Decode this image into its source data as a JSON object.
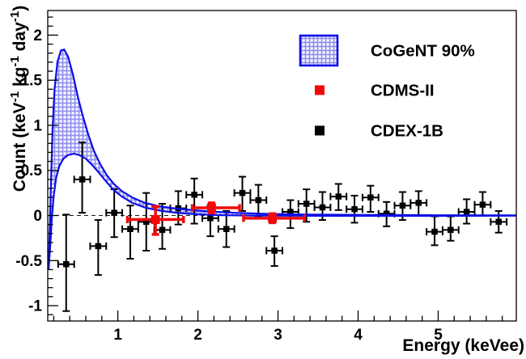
{
  "page": {
    "background": "#ffffff"
  },
  "chart_data": {
    "type": "scatter",
    "title": "",
    "xlabel": "Energy (keVee)",
    "ylabel": "Count (keV^-1 kg^-1 day^-1)",
    "xlim": [
      0.125,
      5.975
    ],
    "ylim": [
      -1.17,
      2.273
    ],
    "x_major_ticks": [
      1,
      2,
      3,
      4,
      5
    ],
    "x_tick_labels": [
      "1",
      "2",
      "3",
      "4",
      "5"
    ],
    "x_minor_step": 0.2,
    "y_major_ticks": [
      -1,
      -0.5,
      0,
      0.5,
      1,
      1.5,
      2
    ],
    "y_tick_labels": [
      "-1",
      "-0.5",
      "0",
      "0.5",
      "1",
      "1.5",
      "2"
    ],
    "y_minor_step": 0.1,
    "grid": false,
    "zero_line": {
      "value": 0,
      "style": "dashed",
      "color": "#1a1a1a"
    },
    "colors": {
      "cogent_blue": "#0d0de6",
      "hatch_blue": "#9090ef",
      "cdms_red": "#f20a0a",
      "cdex_black": "#000000",
      "axis": "#000000"
    },
    "legend": {
      "position": "top-right",
      "entries": [
        {
          "label": "CoGeNT 90%",
          "marker": "hatched-band"
        },
        {
          "label": "CDMS-II",
          "marker": "red-square"
        },
        {
          "label": "CDEX-1B",
          "marker": "black-square"
        }
      ]
    },
    "series": [
      {
        "name": "CoGeNT 90%",
        "type": "band",
        "upper": [
          [
            0.135,
            -0.6
          ],
          [
            0.15,
            -0.15
          ],
          [
            0.165,
            0.35
          ],
          [
            0.185,
            0.95
          ],
          [
            0.21,
            1.4
          ],
          [
            0.245,
            1.7
          ],
          [
            0.29,
            1.83
          ],
          [
            0.33,
            1.84
          ],
          [
            0.38,
            1.76
          ],
          [
            0.44,
            1.56
          ],
          [
            0.5,
            1.32
          ],
          [
            0.56,
            1.11
          ],
          [
            0.63,
            0.9
          ],
          [
            0.7,
            0.72
          ],
          [
            0.78,
            0.57
          ],
          [
            0.86,
            0.45
          ],
          [
            0.95,
            0.35
          ],
          [
            1.05,
            0.27
          ],
          [
            1.18,
            0.2
          ],
          [
            1.32,
            0.145
          ],
          [
            1.5,
            0.105
          ],
          [
            1.7,
            0.08
          ],
          [
            1.95,
            0.058
          ],
          [
            2.2,
            0.042
          ],
          [
            2.5,
            0.028
          ],
          [
            2.9,
            0.017
          ],
          [
            3.4,
            0.01
          ],
          [
            4.2,
            0.006
          ],
          [
            5.0,
            0.003
          ],
          [
            5.975,
            0.001
          ]
        ],
        "lower": [
          [
            0.135,
            -0.6
          ],
          [
            0.155,
            -0.35
          ],
          [
            0.175,
            -0.05
          ],
          [
            0.2,
            0.22
          ],
          [
            0.23,
            0.42
          ],
          [
            0.27,
            0.55
          ],
          [
            0.32,
            0.63
          ],
          [
            0.38,
            0.67
          ],
          [
            0.45,
            0.685
          ],
          [
            0.52,
            0.67
          ],
          [
            0.6,
            0.63
          ],
          [
            0.68,
            0.56
          ],
          [
            0.76,
            0.48
          ],
          [
            0.85,
            0.38
          ],
          [
            0.95,
            0.28
          ],
          [
            1.05,
            0.21
          ],
          [
            1.18,
            0.14
          ],
          [
            1.35,
            0.085
          ],
          [
            1.55,
            0.05
          ],
          [
            1.75,
            0.028
          ],
          [
            2.0,
            0.013
          ],
          [
            2.3,
            0.004
          ],
          [
            2.7,
            -0.001
          ],
          [
            3.2,
            -0.003
          ],
          [
            4.0,
            -0.004
          ],
          [
            5.0,
            -0.004
          ],
          [
            5.975,
            -0.003
          ]
        ]
      },
      {
        "name": "CDMS-II",
        "type": "errorbar-points",
        "points": [
          {
            "x": 1.47,
            "y": -0.045,
            "xlo": 1.12,
            "xhi": 1.82,
            "ylo": -0.21,
            "yhi": 0.1
          },
          {
            "x": 2.17,
            "y": 0.085,
            "xlo": 1.93,
            "xhi": 2.52,
            "ylo": 0.03,
            "yhi": 0.14
          },
          {
            "x": 2.93,
            "y": -0.03,
            "xlo": 2.57,
            "xhi": 3.33,
            "ylo": -0.08,
            "yhi": 0.02
          }
        ]
      },
      {
        "name": "CDEX-1B",
        "type": "errorbar-points",
        "xerr": 0.1,
        "points": [
          {
            "x": 0.355,
            "y": -0.54,
            "ylo": -1.06,
            "yhi": 0.01
          },
          {
            "x": 0.555,
            "y": 0.4,
            "ylo": 0.03,
            "yhi": 0.81
          },
          {
            "x": 0.755,
            "y": -0.34,
            "ylo": -0.66,
            "yhi": -0.05
          },
          {
            "x": 0.955,
            "y": 0.03,
            "ylo": -0.24,
            "yhi": 0.29
          },
          {
            "x": 1.155,
            "y": -0.15,
            "ylo": -0.48,
            "yhi": 0.11
          },
          {
            "x": 1.355,
            "y": -0.07,
            "ylo": -0.39,
            "yhi": 0.25
          },
          {
            "x": 1.555,
            "y": -0.16,
            "ylo": -0.37,
            "yhi": 0.13
          },
          {
            "x": 1.755,
            "y": 0.08,
            "ylo": -0.1,
            "yhi": 0.27
          },
          {
            "x": 1.955,
            "y": 0.23,
            "ylo": -0.09,
            "yhi": 0.41
          },
          {
            "x": 2.155,
            "y": -0.03,
            "ylo": -0.23,
            "yhi": 0.11
          },
          {
            "x": 2.355,
            "y": -0.15,
            "ylo": -0.35,
            "yhi": 0.05
          },
          {
            "x": 2.555,
            "y": 0.25,
            "ylo": 0.05,
            "yhi": 0.43
          },
          {
            "x": 2.755,
            "y": 0.17,
            "ylo": -0.01,
            "yhi": 0.34
          },
          {
            "x": 2.955,
            "y": -0.39,
            "ylo": -0.56,
            "yhi": -0.23
          },
          {
            "x": 3.155,
            "y": 0.04,
            "ylo": -0.14,
            "yhi": 0.17
          },
          {
            "x": 3.355,
            "y": 0.13,
            "ylo": -0.07,
            "yhi": 0.29
          },
          {
            "x": 3.555,
            "y": 0.09,
            "ylo": -0.05,
            "yhi": 0.26
          },
          {
            "x": 3.755,
            "y": 0.21,
            "ylo": 0.06,
            "yhi": 0.35
          },
          {
            "x": 3.955,
            "y": 0.07,
            "ylo": -0.08,
            "yhi": 0.22
          },
          {
            "x": 4.155,
            "y": 0.2,
            "ylo": 0.04,
            "yhi": 0.33
          },
          {
            "x": 4.355,
            "y": 0.02,
            "ylo": -0.12,
            "yhi": 0.15
          },
          {
            "x": 4.555,
            "y": 0.11,
            "ylo": -0.05,
            "yhi": 0.26
          },
          {
            "x": 4.755,
            "y": 0.14,
            "ylo": 0.0,
            "yhi": 0.27
          },
          {
            "x": 4.955,
            "y": -0.18,
            "ylo": -0.33,
            "yhi": -0.01
          },
          {
            "x": 5.155,
            "y": -0.16,
            "ylo": -0.28,
            "yhi": -0.01
          },
          {
            "x": 5.355,
            "y": 0.04,
            "ylo": -0.09,
            "yhi": 0.18
          },
          {
            "x": 5.555,
            "y": 0.12,
            "ylo": 0.0,
            "yhi": 0.26
          },
          {
            "x": 5.755,
            "y": -0.07,
            "ylo": -0.19,
            "yhi": 0.05
          }
        ]
      }
    ]
  }
}
